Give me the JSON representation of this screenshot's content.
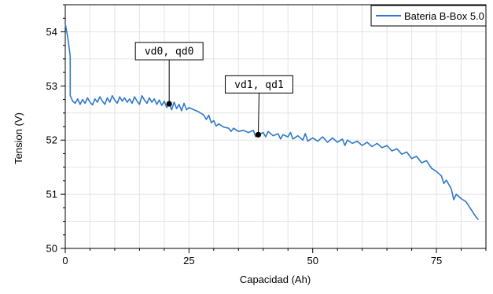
{
  "chart_data": {
    "type": "line",
    "xlabel": "Capacidad (Ah)",
    "ylabel": "Tension (V)",
    "xlim": [
      0,
      85
    ],
    "ylim": [
      50,
      54.5
    ],
    "x_ticks": [
      0,
      25,
      50,
      75
    ],
    "y_ticks": [
      50,
      51,
      52,
      53,
      54
    ],
    "grid": true,
    "legend_position": "top-right",
    "series": [
      {
        "name": "Bateria B-Box 5.0",
        "color": "#2f78c8",
        "points": [
          [
            0.0,
            54.15
          ],
          [
            0.5,
            53.9
          ],
          [
            1.0,
            53.55
          ],
          [
            1.0,
            52.82
          ],
          [
            1.5,
            52.72
          ],
          [
            2.0,
            52.68
          ],
          [
            2.5,
            52.76
          ],
          [
            3.0,
            52.66
          ],
          [
            3.5,
            52.75
          ],
          [
            4.0,
            52.68
          ],
          [
            4.5,
            52.78
          ],
          [
            5.0,
            52.7
          ],
          [
            5.5,
            52.65
          ],
          [
            6.0,
            52.76
          ],
          [
            6.5,
            52.7
          ],
          [
            7.0,
            52.8
          ],
          [
            7.5,
            52.72
          ],
          [
            8.0,
            52.66
          ],
          [
            8.5,
            52.78
          ],
          [
            9.0,
            52.7
          ],
          [
            9.5,
            52.82
          ],
          [
            10.0,
            52.74
          ],
          [
            10.5,
            52.68
          ],
          [
            11.0,
            52.8
          ],
          [
            11.5,
            52.72
          ],
          [
            12.0,
            52.78
          ],
          [
            12.5,
            52.7
          ],
          [
            13.0,
            52.76
          ],
          [
            13.5,
            52.68
          ],
          [
            14.0,
            52.8
          ],
          [
            14.5,
            52.72
          ],
          [
            15.0,
            52.66
          ],
          [
            15.5,
            52.82
          ],
          [
            16.0,
            52.74
          ],
          [
            16.5,
            52.68
          ],
          [
            17.0,
            52.78
          ],
          [
            17.5,
            52.7
          ],
          [
            18.0,
            52.76
          ],
          [
            18.5,
            52.66
          ],
          [
            19.0,
            52.74
          ],
          [
            19.5,
            52.64
          ],
          [
            20.0,
            52.72
          ],
          [
            20.5,
            52.6
          ],
          [
            21.0,
            52.68
          ],
          [
            21.5,
            52.56
          ],
          [
            22.0,
            52.7
          ],
          [
            22.5,
            52.58
          ],
          [
            23.0,
            52.66
          ],
          [
            23.5,
            52.54
          ],
          [
            24.0,
            52.68
          ],
          [
            24.5,
            52.56
          ],
          [
            25.0,
            52.6
          ],
          [
            26.0,
            52.56
          ],
          [
            27.0,
            52.52
          ],
          [
            28.0,
            52.46
          ],
          [
            28.5,
            52.38
          ],
          [
            29.0,
            52.46
          ],
          [
            29.5,
            52.32
          ],
          [
            30.0,
            52.36
          ],
          [
            30.5,
            52.26
          ],
          [
            31.0,
            52.3
          ],
          [
            32.0,
            52.24
          ],
          [
            33.0,
            52.22
          ],
          [
            33.5,
            52.16
          ],
          [
            34.0,
            52.22
          ],
          [
            35.0,
            52.16
          ],
          [
            36.0,
            52.18
          ],
          [
            37.0,
            52.14
          ],
          [
            38.0,
            52.18
          ],
          [
            38.5,
            52.06
          ],
          [
            39.0,
            52.1
          ],
          [
            40.0,
            52.14
          ],
          [
            40.5,
            52.06
          ],
          [
            41.0,
            52.16
          ],
          [
            42.0,
            52.08
          ],
          [
            43.0,
            52.12
          ],
          [
            43.5,
            52.02
          ],
          [
            44.0,
            52.1
          ],
          [
            45.0,
            52.06
          ],
          [
            45.5,
            52.14
          ],
          [
            46.0,
            52.02
          ],
          [
            47.0,
            52.08
          ],
          [
            48.0,
            52.0
          ],
          [
            48.5,
            52.12
          ],
          [
            49.0,
            51.98
          ],
          [
            50.0,
            52.04
          ],
          [
            51.0,
            51.98
          ],
          [
            52.0,
            52.06
          ],
          [
            53.0,
            51.96
          ],
          [
            54.0,
            52.04
          ],
          [
            55.0,
            51.96
          ],
          [
            56.0,
            52.02
          ],
          [
            56.5,
            51.9
          ],
          [
            57.0,
            52.0
          ],
          [
            58.0,
            51.94
          ],
          [
            59.0,
            51.98
          ],
          [
            60.0,
            51.9
          ],
          [
            61.0,
            51.96
          ],
          [
            62.0,
            51.88
          ],
          [
            63.0,
            51.94
          ],
          [
            64.0,
            51.86
          ],
          [
            65.0,
            51.9
          ],
          [
            66.0,
            51.8
          ],
          [
            67.0,
            51.84
          ],
          [
            68.0,
            51.74
          ],
          [
            69.0,
            51.78
          ],
          [
            70.0,
            51.66
          ],
          [
            71.0,
            51.7
          ],
          [
            72.0,
            51.58
          ],
          [
            73.0,
            51.62
          ],
          [
            74.0,
            51.48
          ],
          [
            75.0,
            51.42
          ],
          [
            76.0,
            51.34
          ],
          [
            76.5,
            51.2
          ],
          [
            77.0,
            51.26
          ],
          [
            78.0,
            51.1
          ],
          [
            78.5,
            50.9
          ],
          [
            79.0,
            51.0
          ],
          [
            80.0,
            50.92
          ],
          [
            81.0,
            50.86
          ],
          [
            82.0,
            50.72
          ],
          [
            83.0,
            50.58
          ],
          [
            83.5,
            50.53
          ]
        ]
      }
    ],
    "annotations": [
      {
        "label": "vd0, qd0",
        "x": 21.0,
        "y": 52.67
      },
      {
        "label": "vd1, qd1",
        "x": 39.0,
        "y": 52.1
      }
    ]
  }
}
